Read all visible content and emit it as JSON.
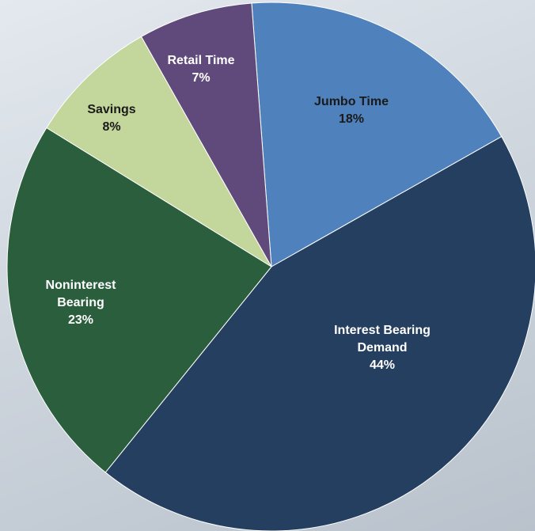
{
  "chart_data": {
    "type": "pie",
    "categories": [
      "Jumbo Time",
      "Interest Bearing Demand",
      "Noninterest Bearing",
      "Savings",
      "Retail Time"
    ],
    "values": [
      18,
      44,
      23,
      8,
      7
    ],
    "value_labels": [
      "18%",
      "44%",
      "23%",
      "8%",
      "7%"
    ],
    "colors": [
      "#4f81bd",
      "#253f61",
      "#2b5e3d",
      "#c3d69b",
      "#604a7b"
    ]
  }
}
